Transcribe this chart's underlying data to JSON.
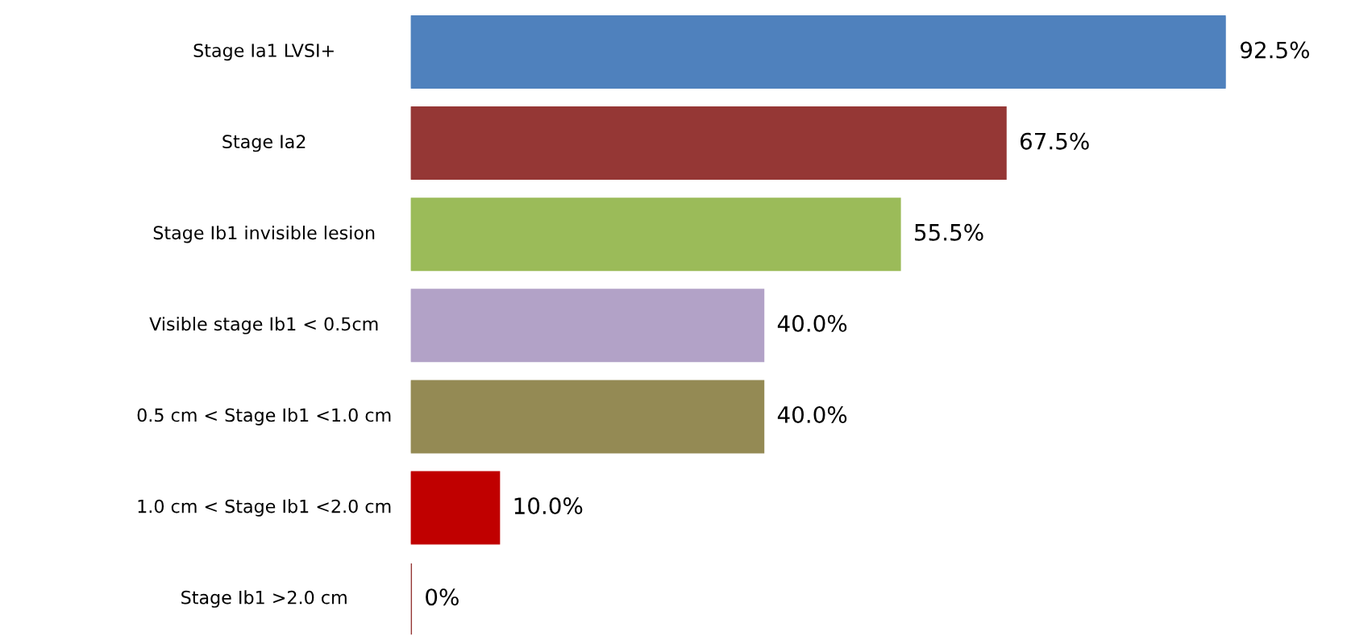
{
  "chart_data": {
    "type": "bar",
    "orientation": "horizontal",
    "categories": [
      "Stage Ia1 LVSI+",
      "Stage Ia2",
      "Stage Ib1 invisible lesion",
      "Visible stage Ib1 < 0.5cm",
      "0.5 cm < Stage Ib1 <1.0 cm",
      "1.0 cm < Stage Ib1 <2.0 cm",
      "Stage Ib1 >2.0 cm"
    ],
    "values": [
      92.5,
      67.5,
      55.5,
      40.0,
      40.0,
      10.0,
      0
    ],
    "colors": [
      "#4f81bd",
      "#953735",
      "#9bbb59",
      "#b2a2c7",
      "#948a54",
      "#c00000",
      "#953735"
    ],
    "value_labels": [
      "92.5%",
      "67.5%",
      "55.5%",
      "40.0%",
      "40.0%",
      "10.0%",
      "0%"
    ],
    "legend": false
  }
}
